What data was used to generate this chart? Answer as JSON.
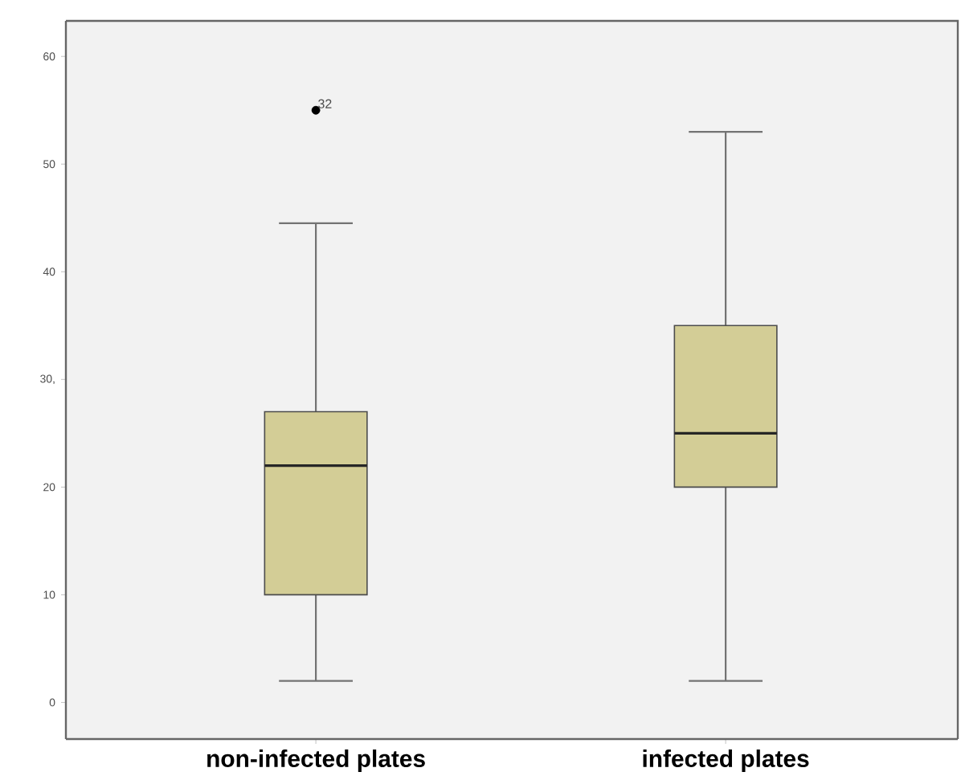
{
  "chart_data": {
    "type": "box",
    "categories": [
      "non-infected plates",
      "infected plates"
    ],
    "boxes": [
      {
        "low": 2,
        "q1": 10,
        "median": 22,
        "q3": 27,
        "high": 44.5,
        "outliers": [
          55
        ]
      },
      {
        "low": 2,
        "q1": 20,
        "median": 25,
        "q3": 35,
        "high": 53
      }
    ],
    "color": "#d3cd96",
    "ylim": [
      -3.4,
      63.3
    ],
    "yticks": [
      0,
      10,
      20,
      {
        "value": 30,
        "label": "30,"
      },
      40,
      50,
      60
    ],
    "annotations": [
      "32"
    ]
  }
}
